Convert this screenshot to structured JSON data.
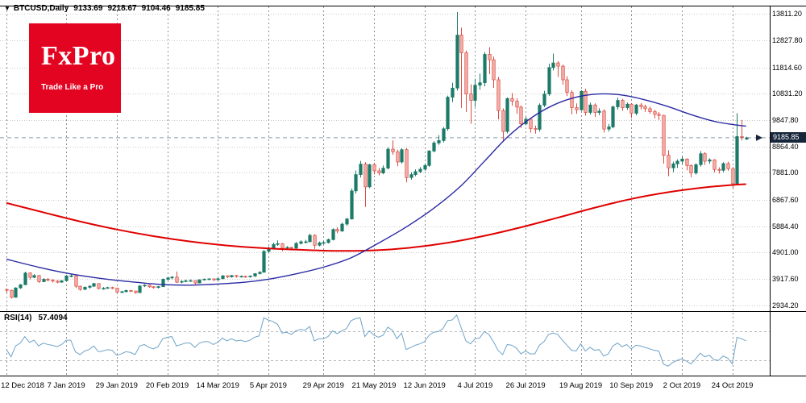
{
  "window": {
    "collapse_icon": "▼",
    "symbol_period": "BTCUSD,Daily",
    "ohlc": {
      "open": "9133.69",
      "high": "9218.67",
      "low": "9104.46",
      "close": "9185.85"
    }
  },
  "logo": {
    "name": "FxPro",
    "tagline": "Trade Like a Pro"
  },
  "indicator": {
    "label": "RSI(14)",
    "value": "57.4094"
  },
  "colors": {
    "background": "#ffffff",
    "grid_h": "#c9c9c9",
    "grid_v": "#909090",
    "border": "#000000",
    "up": "#1c7a68",
    "down_fill": "#f3aea9",
    "down_stroke": "#dc4a41",
    "rsi": "#6fa3c8",
    "rsi_level": "#b5b5b5",
    "current_price_line": "#8e9bab",
    "badge_bg": "#17263b",
    "badge_text": "#ffffff",
    "logo_bg": "#e30421"
  },
  "chart_data": {
    "type": "candlestick",
    "title": "BTCUSD Daily candlestick chart with two moving averages and RSI(14)",
    "symbol": "BTCUSD",
    "timeframe": "Daily",
    "current_price": 9185.85,
    "current_price_label": "9185.85",
    "price_scale": {
      "min": 2830,
      "max": 14150
    },
    "rsi_scale": {
      "min": 10,
      "max": 95
    },
    "y_axis_ticks": [
      "13811.20",
      "12827.80",
      "11814.60",
      "10831.20",
      "9847.80",
      "8864.40",
      "7881.00",
      "6867.60",
      "5884.40",
      "4901.00",
      "3917.60",
      "2934.20"
    ],
    "x_axis_ticks": [
      {
        "i": 0,
        "label": "12 Dec 2018"
      },
      {
        "i": 13,
        "label": "7 Jan 2019"
      },
      {
        "i": 24,
        "label": "29 Jan 2019"
      },
      {
        "i": 35,
        "label": "20 Feb 2019"
      },
      {
        "i": 46,
        "label": "14 Mar 2019"
      },
      {
        "i": 57,
        "label": "5 Apr 2019"
      },
      {
        "i": 69,
        "label": "29 Apr 2019"
      },
      {
        "i": 80,
        "label": "21 May 2019"
      },
      {
        "i": 91,
        "label": "12 Jun 2019"
      },
      {
        "i": 102,
        "label": "4 Jul 2019"
      },
      {
        "i": 113,
        "label": "26 Jul 2019"
      },
      {
        "i": 125,
        "label": "19 Aug 2019"
      },
      {
        "i": 136,
        "label": "10 Sep 2019"
      },
      {
        "i": 147,
        "label": "2 Oct 2019"
      },
      {
        "i": 158,
        "label": "24 Oct 2019"
      }
    ],
    "candles": [
      [
        3520,
        3555,
        3400,
        3486
      ],
      [
        3486,
        3510,
        3180,
        3225
      ],
      [
        3225,
        3600,
        3215,
        3577
      ],
      [
        3577,
        3720,
        3540,
        3695
      ],
      [
        3695,
        4180,
        3680,
        4134
      ],
      [
        4134,
        4160,
        3900,
        3970
      ],
      [
        3970,
        4090,
        3940,
        4040
      ],
      [
        4040,
        4060,
        3760,
        3810
      ],
      [
        3810,
        3940,
        3790,
        3900
      ],
      [
        3900,
        3950,
        3820,
        3865
      ],
      [
        3865,
        3900,
        3780,
        3830
      ],
      [
        3830,
        3870,
        3750,
        3790
      ],
      [
        3790,
        3870,
        3770,
        3845
      ],
      [
        3845,
        4060,
        3830,
        4025
      ],
      [
        4025,
        4080,
        3970,
        4030
      ],
      [
        4030,
        4040,
        3570,
        3640
      ],
      [
        3640,
        3660,
        3470,
        3520
      ],
      [
        3520,
        3630,
        3500,
        3600
      ],
      [
        3600,
        3680,
        3550,
        3640
      ],
      [
        3640,
        3760,
        3610,
        3740
      ],
      [
        3740,
        3750,
        3520,
        3555
      ],
      [
        3555,
        3610,
        3510,
        3560
      ],
      [
        3560,
        3620,
        3540,
        3590
      ],
      [
        3590,
        3620,
        3530,
        3570
      ],
      [
        3570,
        3580,
        3380,
        3420
      ],
      [
        3420,
        3470,
        3390,
        3435
      ],
      [
        3435,
        3510,
        3410,
        3480
      ],
      [
        3480,
        3500,
        3420,
        3460
      ],
      [
        3460,
        3470,
        3355,
        3400
      ],
      [
        3400,
        3680,
        3390,
        3650
      ],
      [
        3650,
        3720,
        3610,
        3680
      ],
      [
        3680,
        3700,
        3580,
        3620
      ],
      [
        3620,
        3640,
        3550,
        3590
      ],
      [
        3590,
        3650,
        3560,
        3625
      ],
      [
        3625,
        3930,
        3610,
        3900
      ],
      [
        3900,
        3990,
        3850,
        3950
      ],
      [
        3950,
        4020,
        3900,
        3980
      ],
      [
        3980,
        4190,
        3760,
        3790
      ],
      [
        3790,
        3860,
        3750,
        3820
      ],
      [
        3820,
        3880,
        3790,
        3845
      ],
      [
        3845,
        3890,
        3810,
        3850
      ],
      [
        3850,
        3860,
        3710,
        3760
      ],
      [
        3760,
        3900,
        3750,
        3880
      ],
      [
        3880,
        3930,
        3850,
        3905
      ],
      [
        3905,
        3940,
        3870,
        3915
      ],
      [
        3915,
        3930,
        3830,
        3880
      ],
      [
        3880,
        3950,
        3860,
        3920
      ],
      [
        3920,
        4050,
        3900,
        4030
      ],
      [
        4030,
        4050,
        3940,
        3990
      ],
      [
        3990,
        4060,
        3960,
        4040
      ],
      [
        4040,
        4060,
        3960,
        4000
      ],
      [
        4000,
        4040,
        3970,
        4010
      ],
      [
        4010,
        4030,
        3950,
        3990
      ],
      [
        3990,
        4040,
        3960,
        4020
      ],
      [
        4020,
        4130,
        3990,
        4110
      ],
      [
        4110,
        4200,
        4080,
        4160
      ],
      [
        4160,
        5000,
        4150,
        4940
      ],
      [
        4940,
        5120,
        4890,
        5050
      ],
      [
        5050,
        5270,
        5010,
        5200
      ],
      [
        5200,
        5350,
        5150,
        5230
      ],
      [
        5230,
        5250,
        4950,
        5060
      ],
      [
        5060,
        5140,
        5000,
        5090
      ],
      [
        5090,
        5110,
        4970,
        5060
      ],
      [
        5060,
        5290,
        5040,
        5240
      ],
      [
        5240,
        5350,
        5200,
        5300
      ],
      [
        5300,
        5370,
        5240,
        5300
      ],
      [
        5300,
        5600,
        5280,
        5540
      ],
      [
        5540,
        5580,
        5030,
        5170
      ],
      [
        5170,
        5310,
        5130,
        5260
      ],
      [
        5260,
        5330,
        5210,
        5270
      ],
      [
        5270,
        5420,
        5240,
        5380
      ],
      [
        5380,
        5800,
        5350,
        5760
      ],
      [
        5760,
        5840,
        5620,
        5700
      ],
      [
        5700,
        6010,
        5670,
        5960
      ],
      [
        5960,
        6200,
        5900,
        6150
      ],
      [
        6150,
        7290,
        6130,
        7200
      ],
      [
        7200,
        7960,
        7100,
        7810
      ],
      [
        7810,
        8320,
        7700,
        8200
      ],
      [
        8200,
        8270,
        6600,
        7350
      ],
      [
        7350,
        8210,
        7300,
        8180
      ],
      [
        8180,
        8250,
        7820,
        7950
      ],
      [
        7950,
        8060,
        7780,
        7870
      ],
      [
        7870,
        8150,
        7820,
        8050
      ],
      [
        8050,
        8830,
        8000,
        8760
      ],
      [
        8760,
        9090,
        8550,
        8660
      ],
      [
        8660,
        8740,
        8120,
        8280
      ],
      [
        8280,
        8790,
        8220,
        8740
      ],
      [
        8740,
        8800,
        7520,
        7700
      ],
      [
        7700,
        7900,
        7620,
        7810
      ],
      [
        7810,
        8000,
        7750,
        7920
      ],
      [
        7920,
        8090,
        7860,
        8010
      ],
      [
        8010,
        8230,
        7950,
        8150
      ],
      [
        8150,
        8720,
        8100,
        8690
      ],
      [
        8690,
        9060,
        8640,
        8990
      ],
      [
        8990,
        9280,
        8920,
        9080
      ],
      [
        9080,
        9590,
        9010,
        9520
      ],
      [
        9520,
        10760,
        9450,
        10700
      ],
      [
        10700,
        11240,
        10520,
        11040
      ],
      [
        11040,
        13880,
        10950,
        13020
      ],
      [
        13020,
        13300,
        10300,
        12360
      ],
      [
        12360,
        12440,
        10150,
        10820
      ],
      [
        10820,
        11180,
        9710,
        10580
      ],
      [
        10580,
        11390,
        10340,
        11150
      ],
      [
        11150,
        11580,
        10980,
        11240
      ],
      [
        11240,
        12390,
        11100,
        12300
      ],
      [
        12300,
        12570,
        11560,
        12100
      ],
      [
        12100,
        12220,
        11050,
        11350
      ],
      [
        11350,
        11450,
        9870,
        10200
      ],
      [
        10200,
        10280,
        9070,
        9420
      ],
      [
        9420,
        10690,
        9350,
        10650
      ],
      [
        10650,
        10850,
        10380,
        10550
      ],
      [
        10550,
        10660,
        10080,
        10330
      ],
      [
        10330,
        10390,
        9550,
        9700
      ],
      [
        9700,
        9960,
        9650,
        9880
      ],
      [
        9880,
        9920,
        9380,
        9530
      ],
      [
        9530,
        9640,
        9340,
        9500
      ],
      [
        9500,
        10470,
        9420,
        10400
      ],
      [
        10400,
        10940,
        10330,
        10820
      ],
      [
        10820,
        11950,
        10750,
        11810
      ],
      [
        11810,
        12330,
        11700,
        11980
      ],
      [
        11980,
        12050,
        11460,
        11860
      ],
      [
        11860,
        11920,
        11170,
        11350
      ],
      [
        11350,
        11480,
        10740,
        10880
      ],
      [
        10880,
        10960,
        10060,
        10310
      ],
      [
        10310,
        10470,
        10080,
        10230
      ],
      [
        10230,
        10960,
        10190,
        10920
      ],
      [
        10920,
        11020,
        10010,
        10130
      ],
      [
        10130,
        10500,
        10050,
        10410
      ],
      [
        10410,
        10470,
        9960,
        10130
      ],
      [
        10130,
        10290,
        10030,
        10180
      ],
      [
        10180,
        10250,
        9380,
        9510
      ],
      [
        9510,
        9700,
        9420,
        9590
      ],
      [
        9590,
        10390,
        9540,
        10340
      ],
      [
        10340,
        10680,
        10240,
        10580
      ],
      [
        10580,
        10640,
        10190,
        10310
      ],
      [
        10310,
        10500,
        10230,
        10440
      ],
      [
        10440,
        10480,
        9920,
        10100
      ],
      [
        10100,
        10450,
        10020,
        10410
      ],
      [
        10410,
        10480,
        10240,
        10350
      ],
      [
        10350,
        10420,
        10150,
        10270
      ],
      [
        10270,
        10350,
        10080,
        10160
      ],
      [
        10160,
        10230,
        9910,
        10060
      ],
      [
        10060,
        10150,
        9850,
        10020
      ],
      [
        10020,
        10040,
        8220,
        8530
      ],
      [
        8530,
        8720,
        7750,
        8060
      ],
      [
        8060,
        8290,
        7900,
        8210
      ],
      [
        8210,
        8380,
        8060,
        8310
      ],
      [
        8310,
        8490,
        8200,
        8390
      ],
      [
        8390,
        8420,
        7970,
        8150
      ],
      [
        8150,
        8190,
        7710,
        7870
      ],
      [
        7870,
        8230,
        7810,
        8180
      ],
      [
        8180,
        8690,
        8110,
        8590
      ],
      [
        8590,
        8640,
        8170,
        8310
      ],
      [
        8310,
        8420,
        8210,
        8360
      ],
      [
        8360,
        8390,
        7890,
        8000
      ],
      [
        8000,
        8080,
        7850,
        7970
      ],
      [
        7970,
        8270,
        7900,
        8220
      ],
      [
        8220,
        8290,
        7950,
        8030
      ],
      [
        8030,
        8100,
        7290,
        7470
      ],
      [
        7470,
        10100,
        7430,
        9230
      ],
      [
        9230,
        9850,
        9080,
        9205
      ],
      [
        9133.69,
        9218.67,
        9104.46,
        9185.85
      ]
    ],
    "overlays": [
      {
        "name": "ma-slow-red",
        "color": "#e00000",
        "width": 2,
        "points": [
          [
            0,
            6750
          ],
          [
            8,
            6400
          ],
          [
            16,
            6060
          ],
          [
            24,
            5760
          ],
          [
            32,
            5510
          ],
          [
            40,
            5310
          ],
          [
            48,
            5160
          ],
          [
            56,
            5060
          ],
          [
            64,
            5000
          ],
          [
            72,
            4960
          ],
          [
            80,
            4980
          ],
          [
            88,
            5080
          ],
          [
            96,
            5260
          ],
          [
            104,
            5520
          ],
          [
            112,
            5840
          ],
          [
            120,
            6200
          ],
          [
            128,
            6570
          ],
          [
            136,
            6900
          ],
          [
            144,
            7150
          ],
          [
            152,
            7330
          ],
          [
            158,
            7420
          ],
          [
            161,
            7450
          ]
        ]
      },
      {
        "name": "ma-fast-blue",
        "color": "#2929a3",
        "width": 1.4,
        "points": [
          [
            0,
            4650
          ],
          [
            7,
            4350
          ],
          [
            14,
            4100
          ],
          [
            21,
            3920
          ],
          [
            28,
            3790
          ],
          [
            34,
            3700
          ],
          [
            40,
            3680
          ],
          [
            46,
            3720
          ],
          [
            52,
            3790
          ],
          [
            57,
            3900
          ],
          [
            63,
            4100
          ],
          [
            69,
            4350
          ],
          [
            75,
            4700
          ],
          [
            81,
            5250
          ],
          [
            87,
            5850
          ],
          [
            93,
            6550
          ],
          [
            99,
            7400
          ],
          [
            104,
            8300
          ],
          [
            109,
            9200
          ],
          [
            114,
            9900
          ],
          [
            119,
            10400
          ],
          [
            124,
            10700
          ],
          [
            129,
            10820
          ],
          [
            134,
            10780
          ],
          [
            139,
            10600
          ],
          [
            144,
            10350
          ],
          [
            149,
            10050
          ],
          [
            154,
            9800
          ],
          [
            158,
            9680
          ],
          [
            161,
            9620
          ]
        ]
      }
    ],
    "rsi": {
      "period": 14,
      "current": 57.4094,
      "levels": [
        30,
        70
      ],
      "values": [
        45,
        35,
        50,
        54,
        63,
        55,
        58,
        50,
        54,
        52,
        51,
        49,
        52,
        58,
        58,
        42,
        38,
        43,
        45,
        50,
        42,
        43,
        45,
        44,
        37,
        39,
        42,
        41,
        38,
        50,
        52,
        48,
        46,
        49,
        60,
        62,
        63,
        50,
        52,
        54,
        54,
        48,
        54,
        56,
        56,
        52,
        55,
        61,
        57,
        60,
        57,
        58,
        56,
        58,
        62,
        64,
        89,
        86,
        84,
        80,
        68,
        69,
        66,
        71,
        73,
        72,
        77,
        57,
        60,
        60,
        63,
        71,
        67,
        71,
        74,
        85,
        88,
        89,
        63,
        71,
        65,
        62,
        65,
        76,
        72,
        60,
        68,
        45,
        48,
        51,
        53,
        56,
        65,
        69,
        70,
        74,
        85,
        86,
        93,
        75,
        57,
        53,
        60,
        61,
        70,
        66,
        56,
        44,
        38,
        52,
        51,
        47,
        39,
        43,
        39,
        39,
        51,
        56,
        66,
        68,
        66,
        58,
        51,
        44,
        43,
        53,
        43,
        48,
        44,
        45,
        36,
        39,
        50,
        54,
        49,
        52,
        46,
        51,
        50,
        48,
        46,
        44,
        43,
        25,
        22,
        27,
        30,
        32,
        29,
        25,
        32,
        40,
        35,
        37,
        31,
        30,
        36,
        33,
        25,
        62,
        60,
        57
      ]
    }
  }
}
